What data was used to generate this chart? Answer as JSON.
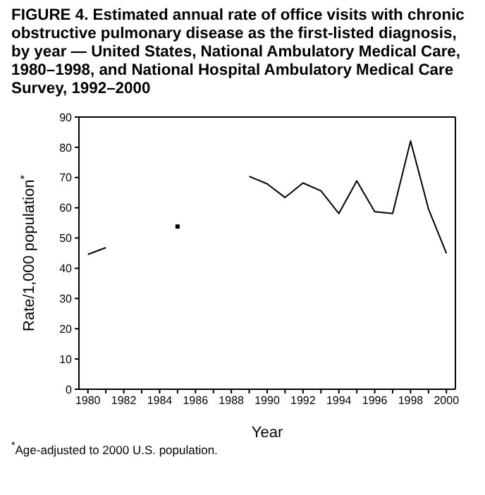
{
  "chart_data": {
    "type": "line",
    "title": "FIGURE 4. Estimated annual rate of office visits with chronic obstructive pulmonary disease as the first-listed diagnosis, by year — United States, National Ambulatory Medical Care, 1980–1998, and National Hospital Ambulatory Medical Care Survey, 1992–2000",
    "xlabel": "Year",
    "ylabel": "Rate/1,000 population$^{*}$",
    "annotations": [
      "$^{*}$Age-adjusted to 2000 U.S. population."
    ],
    "x": [
      1980,
      1981,
      1982,
      1983,
      1984,
      1985,
      1986,
      1987,
      1988,
      1989,
      1990,
      1991,
      1992,
      1993,
      1994,
      1995,
      1996,
      1997,
      1998,
      1999,
      2000
    ],
    "series": [
      {
        "color": "#000000",
        "values": [
          44.6,
          46.8,
          null,
          null,
          null,
          null,
          null,
          null,
          null,
          70.4,
          67.9,
          63.4,
          68.2,
          65.6,
          58.1,
          68.9,
          58.7,
          58.1,
          82.1,
          59.6,
          44.9
        ]
      },
      {
        "type": "scatter",
        "marker": "square",
        "color": "#000000",
        "x": [
          1985
        ],
        "values": [
          53.8
        ]
      }
    ],
    "xlim": [
      1979.5,
      2000.5
    ],
    "xticks": [
      1980,
      {
        "value": 1981,
        "label": null
      },
      1982,
      {
        "value": 1983,
        "label": null
      },
      1984,
      {
        "value": 1985,
        "label": null
      },
      1986,
      {
        "value": 1987,
        "label": null
      },
      1988,
      {
        "value": 1989,
        "label": null
      },
      1990,
      {
        "value": 1991,
        "label": null
      },
      1992,
      {
        "value": 1993,
        "label": null
      },
      1994,
      {
        "value": 1995,
        "label": null
      },
      1996,
      {
        "value": 1997,
        "label": null
      },
      1998,
      {
        "value": 1999,
        "label": null
      },
      2000
    ],
    "ylim": [
      0,
      90
    ],
    "yticks": [
      0,
      10,
      20,
      30,
      40,
      50,
      60,
      70,
      80,
      90
    ],
    "grid": false,
    "legend": false,
    "marker": "none",
    "line_style": "solid"
  }
}
